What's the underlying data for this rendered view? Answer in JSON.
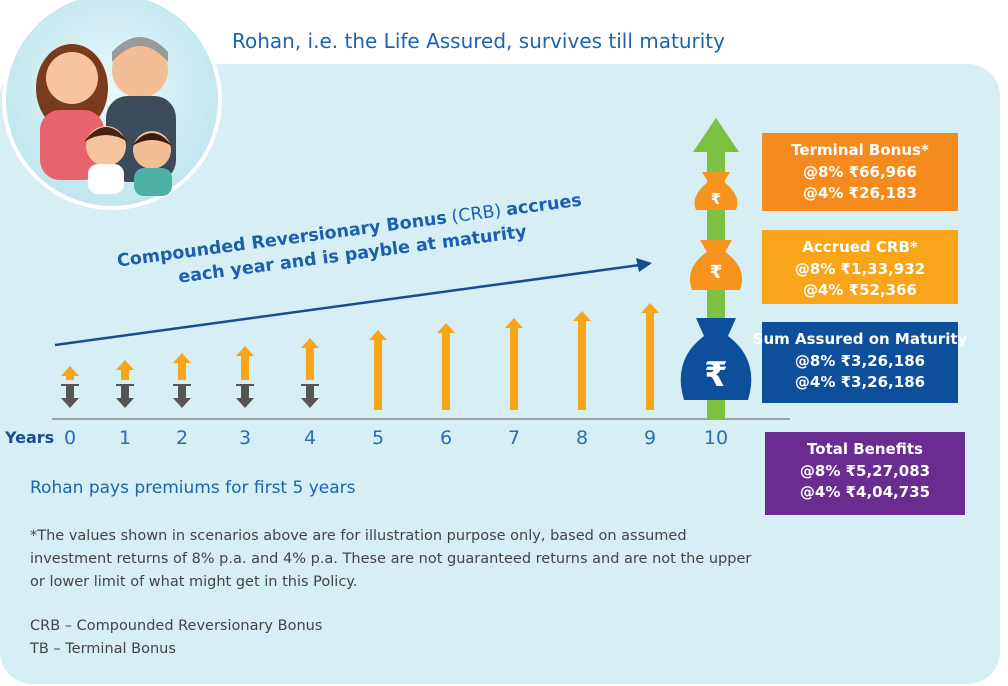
{
  "heading": "Rohan, i.e. the Life Assured, survives till maturity",
  "crb_note": {
    "line1": [
      "Compounded Reversionary Bonus",
      "(CRB)",
      "accrues"
    ],
    "line2": "each year and is payble at maturity"
  },
  "timeline": {
    "label": "Years",
    "years": [
      0,
      1,
      2,
      3,
      4,
      5,
      6,
      7,
      8,
      9,
      10
    ]
  },
  "premium_note": "Rohan pays premiums for first 5 years",
  "benefits": [
    {
      "title": "Terminal Bonus*",
      "lines": [
        "@8% ₹66,966",
        "@4% ₹26,183"
      ]
    },
    {
      "title": "Accrued CRB*",
      "lines": [
        "@8% ₹1,33,932",
        "@4% ₹52,366"
      ]
    },
    {
      "title": "Sum Assured on Maturity",
      "lines": [
        "@8% ₹3,26,186",
        "@4% ₹3,26,186"
      ]
    },
    {
      "title": "Total Benefits",
      "lines": [
        "@8% ₹5,27,083",
        "@4% ₹4,04,735"
      ]
    }
  ],
  "footnote": [
    "*The values shown in scenarios above are for illustration purpose only, based on assumed",
    "investment returns of 8% p.a. and 4% p.a. These are not guaranteed returns and are not the upper",
    "or lower limit of what might get in this Policy."
  ],
  "abbreviations": [
    "CRB – Compounded Reversionary Bonus",
    "TB – Terminal Bonus"
  ]
}
